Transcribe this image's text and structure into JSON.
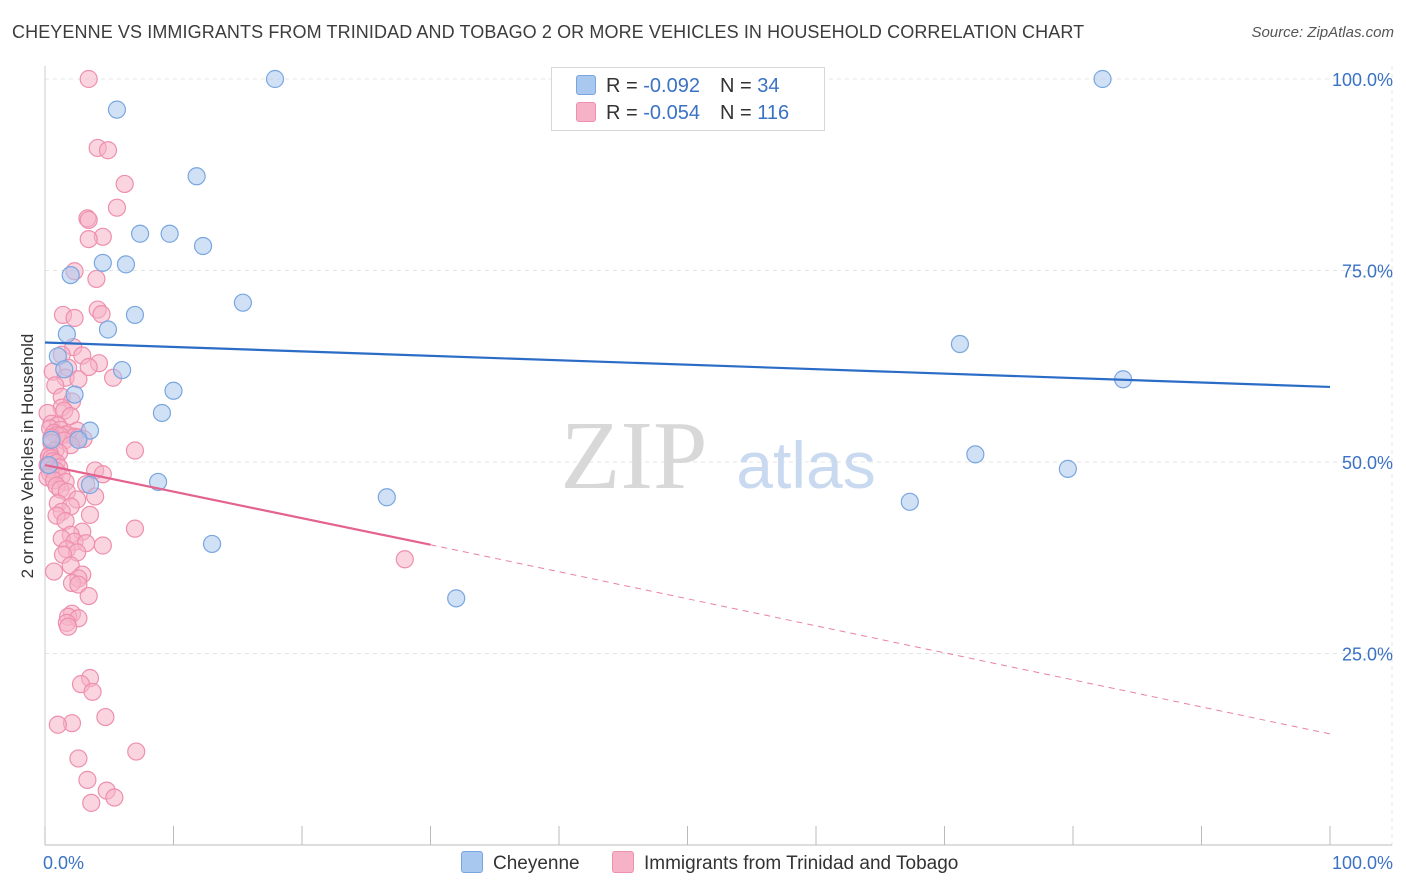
{
  "header": {
    "title": "CHEYENNE VS IMMIGRANTS FROM TRINIDAD AND TOBAGO 2 OR MORE VEHICLES IN HOUSEHOLD CORRELATION CHART",
    "source": "Source: ZipAtlas.com"
  },
  "watermark": {
    "zip": "ZIP",
    "atlas": "atlas"
  },
  "legend": {
    "rows": [
      {
        "r_label": "R = ",
        "r_value": "-0.092",
        "n_label": "N = ",
        "n_value": "34"
      },
      {
        "r_label": "R = ",
        "r_value": "-0.054",
        "n_label": "N = ",
        "n_value": "116"
      }
    ]
  },
  "colors": {
    "cheyenne_fill": "#a9c8ef",
    "cheyenne_stroke": "#7aa6e0",
    "cheyenne_line": "#2b6cc7",
    "trinidad_fill": "#f6b3c7",
    "trinidad_stroke": "#ee8fae",
    "trinidad_line": "#e4628e",
    "axis_text": "#3a72c4",
    "grid": "#e4e4e4"
  },
  "chart_data": {
    "type": "scatter",
    "title": "CHEYENNE VS IMMIGRANTS FROM TRINIDAD AND TOBAGO 2 OR MORE VEHICLES IN HOUSEHOLD CORRELATION CHART",
    "xlabel": "",
    "ylabel": "2 or more Vehicles in Household",
    "xlim": [
      0,
      100
    ],
    "ylim": [
      0,
      105
    ],
    "x_tick_labels": [
      "0.0%",
      "100.0%"
    ],
    "y_ticks": [
      25,
      50,
      75,
      100
    ],
    "y_tick_labels": [
      "25.0%",
      "50.0%",
      "75.0%",
      "100.0%"
    ],
    "grid": true,
    "legend_position": "top-center",
    "series": [
      {
        "name": "Cheyenne",
        "R": -0.092,
        "N": 34,
        "trend": {
          "x": [
            0,
            100
          ],
          "y": [
            65.6,
            59.8
          ],
          "style": "solid"
        },
        "points": [
          [
            17.9,
            100.0
          ],
          [
            82.3,
            100.0
          ],
          [
            5.6,
            96.0
          ],
          [
            11.8,
            87.3
          ],
          [
            7.4,
            79.8
          ],
          [
            9.7,
            79.8
          ],
          [
            12.3,
            78.2
          ],
          [
            4.5,
            76.0
          ],
          [
            6.3,
            75.8
          ],
          [
            2.0,
            74.4
          ],
          [
            15.4,
            70.8
          ],
          [
            7.0,
            69.2
          ],
          [
            4.9,
            67.3
          ],
          [
            1.7,
            66.7
          ],
          [
            71.2,
            65.4
          ],
          [
            1.0,
            63.8
          ],
          [
            1.5,
            62.1
          ],
          [
            6.0,
            62.0
          ],
          [
            83.9,
            60.8
          ],
          [
            10.0,
            59.3
          ],
          [
            2.3,
            58.8
          ],
          [
            9.1,
            56.4
          ],
          [
            3.5,
            54.1
          ],
          [
            2.6,
            52.9
          ],
          [
            0.5,
            52.9
          ],
          [
            72.4,
            51.0
          ],
          [
            79.6,
            49.1
          ],
          [
            3.5,
            47.0
          ],
          [
            8.8,
            47.4
          ],
          [
            26.6,
            45.4
          ],
          [
            67.3,
            44.8
          ],
          [
            13.0,
            39.3
          ],
          [
            32.0,
            32.2
          ],
          [
            0.3,
            49.6
          ]
        ]
      },
      {
        "name": "Immigrants from Trinidad and Tobago",
        "R": -0.054,
        "N": 116,
        "trend": {
          "x": [
            0,
            30.0,
            100
          ],
          "y": [
            49.6,
            39.2,
            14.5
          ],
          "style": "solid-then-dashed"
        },
        "points": [
          [
            3.4,
            100.0
          ],
          [
            4.1,
            91.0
          ],
          [
            4.9,
            90.7
          ],
          [
            6.2,
            86.3
          ],
          [
            5.6,
            83.2
          ],
          [
            3.3,
            81.8
          ],
          [
            3.4,
            81.6
          ],
          [
            4.5,
            79.4
          ],
          [
            3.4,
            79.1
          ],
          [
            2.3,
            74.9
          ],
          [
            4.0,
            73.9
          ],
          [
            4.1,
            69.9
          ],
          [
            4.4,
            69.3
          ],
          [
            1.4,
            69.2
          ],
          [
            2.3,
            68.8
          ],
          [
            2.2,
            65.0
          ],
          [
            1.3,
            64.0
          ],
          [
            2.9,
            63.9
          ],
          [
            4.2,
            62.9
          ],
          [
            3.4,
            62.4
          ],
          [
            1.8,
            62.3
          ],
          [
            0.6,
            61.8
          ],
          [
            1.6,
            61.0
          ],
          [
            5.3,
            61.0
          ],
          [
            2.6,
            60.8
          ],
          [
            0.8,
            60.0
          ],
          [
            1.3,
            58.5
          ],
          [
            2.1,
            57.9
          ],
          [
            1.3,
            57.1
          ],
          [
            1.5,
            56.7
          ],
          [
            0.2,
            56.4
          ],
          [
            2.0,
            56.0
          ],
          [
            0.5,
            55.0
          ],
          [
            1.0,
            54.8
          ],
          [
            0.4,
            54.4
          ],
          [
            1.2,
            54.2
          ],
          [
            2.5,
            54.1
          ],
          [
            0.7,
            53.8
          ],
          [
            1.6,
            53.6
          ],
          [
            1.7,
            53.6
          ],
          [
            0.9,
            53.5
          ],
          [
            1.2,
            53.4
          ],
          [
            2.3,
            53.3
          ],
          [
            0.5,
            53.2
          ],
          [
            2.6,
            53.2
          ],
          [
            3.0,
            53.0
          ],
          [
            1.5,
            52.8
          ],
          [
            0.5,
            52.5
          ],
          [
            2.0,
            52.2
          ],
          [
            0.8,
            51.5
          ],
          [
            7.0,
            51.5
          ],
          [
            1.1,
            51.2
          ],
          [
            0.4,
            51.0
          ],
          [
            0.3,
            50.7
          ],
          [
            0.5,
            50.5
          ],
          [
            0.6,
            50.1
          ],
          [
            0.9,
            49.9
          ],
          [
            0.2,
            49.6
          ],
          [
            0.3,
            49.4
          ],
          [
            1.1,
            49.3
          ],
          [
            0.5,
            49.0
          ],
          [
            0.9,
            48.8
          ],
          [
            3.9,
            48.9
          ],
          [
            0.4,
            48.5
          ],
          [
            4.5,
            48.4
          ],
          [
            1.3,
            48.2
          ],
          [
            0.2,
            48.0
          ],
          [
            0.7,
            47.6
          ],
          [
            1.6,
            47.4
          ],
          [
            3.2,
            47.1
          ],
          [
            0.9,
            46.9
          ],
          [
            1.2,
            46.4
          ],
          [
            1.7,
            46.1
          ],
          [
            3.9,
            45.5
          ],
          [
            2.5,
            45.1
          ],
          [
            1.0,
            44.6
          ],
          [
            2.0,
            44.2
          ],
          [
            1.3,
            43.5
          ],
          [
            3.5,
            43.1
          ],
          [
            0.9,
            43.0
          ],
          [
            1.6,
            42.3
          ],
          [
            7.0,
            41.3
          ],
          [
            2.9,
            40.9
          ],
          [
            2.0,
            40.5
          ],
          [
            1.3,
            40.0
          ],
          [
            2.3,
            39.6
          ],
          [
            3.2,
            39.4
          ],
          [
            4.5,
            39.1
          ],
          [
            1.7,
            38.6
          ],
          [
            2.5,
            38.2
          ],
          [
            1.4,
            37.9
          ],
          [
            28.0,
            37.3
          ],
          [
            2.0,
            36.5
          ],
          [
            0.7,
            35.7
          ],
          [
            2.9,
            35.3
          ],
          [
            2.6,
            34.8
          ],
          [
            2.1,
            34.2
          ],
          [
            2.6,
            34.0
          ],
          [
            3.4,
            32.5
          ],
          [
            2.1,
            30.2
          ],
          [
            1.8,
            29.8
          ],
          [
            2.6,
            29.6
          ],
          [
            1.7,
            29.0
          ],
          [
            1.8,
            28.5
          ],
          [
            3.5,
            21.8
          ],
          [
            2.8,
            21.0
          ],
          [
            3.7,
            20.0
          ],
          [
            4.7,
            16.7
          ],
          [
            2.1,
            15.9
          ],
          [
            1.0,
            15.7
          ],
          [
            7.1,
            12.2
          ],
          [
            2.6,
            11.3
          ],
          [
            3.3,
            8.5
          ],
          [
            4.8,
            7.1
          ],
          [
            3.6,
            5.5
          ],
          [
            5.4,
            6.2
          ]
        ]
      }
    ]
  },
  "bottom_legend": {
    "items": [
      {
        "label": "Cheyenne"
      },
      {
        "label": "Immigrants from Trinidad and Tobago"
      }
    ]
  }
}
